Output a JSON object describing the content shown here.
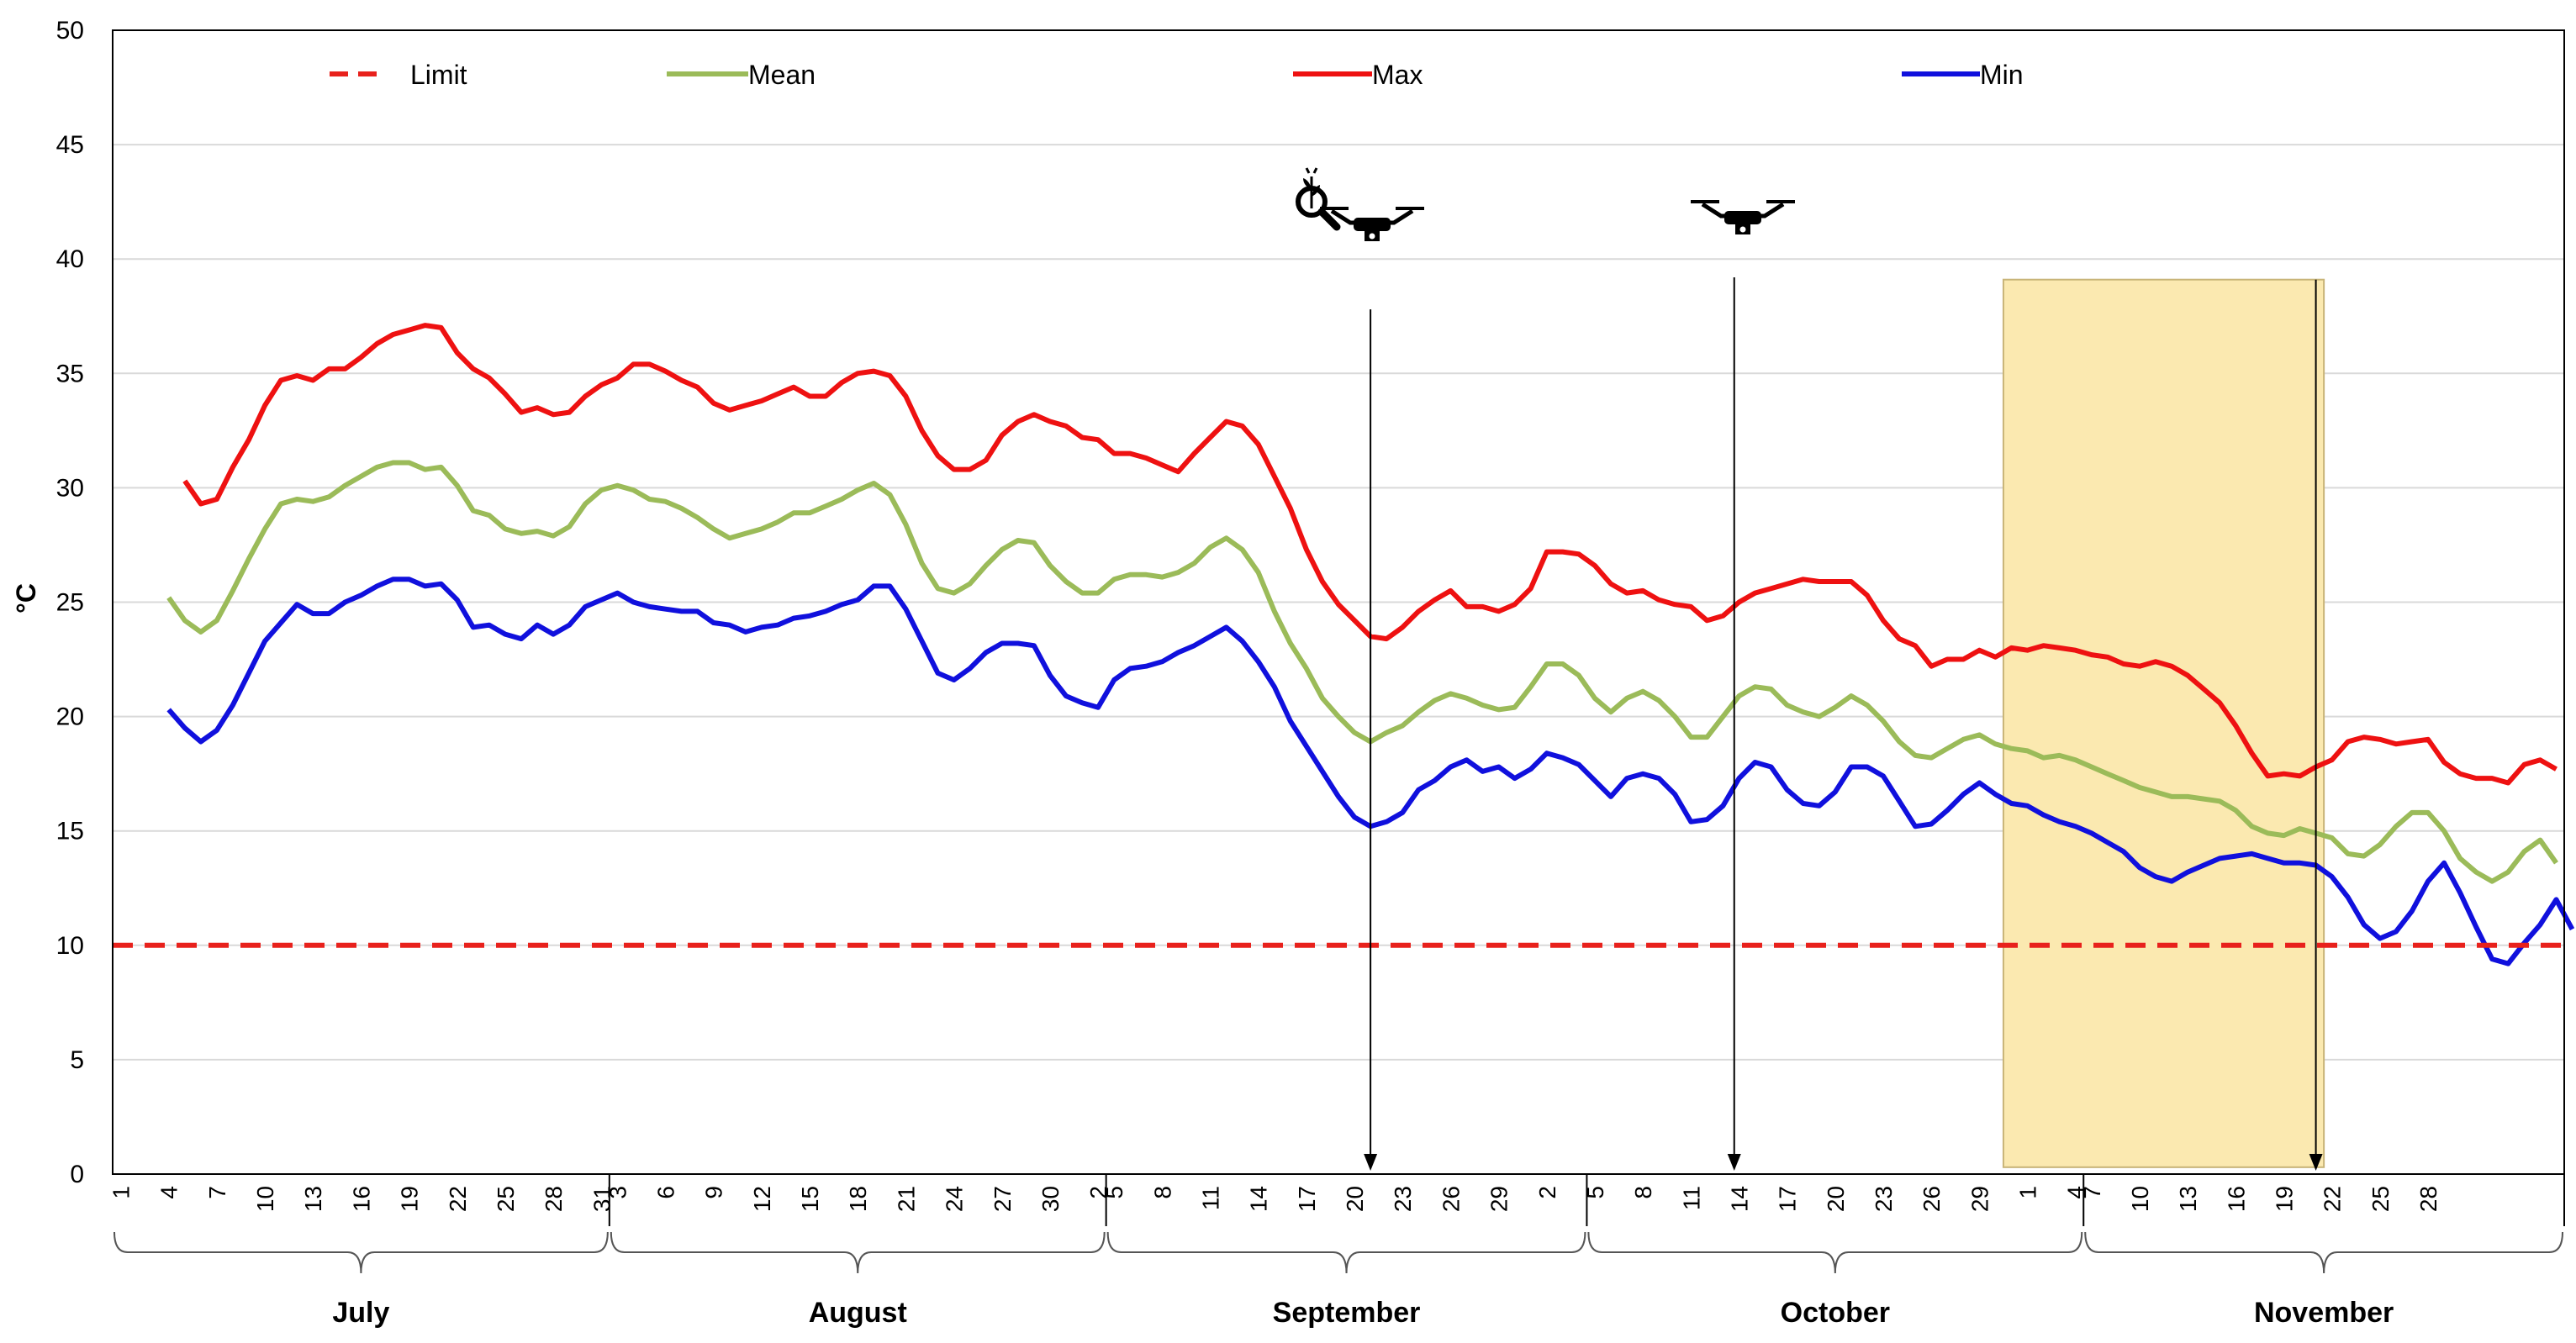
{
  "chart_data": {
    "type": "line",
    "ylabel": "°C",
    "ylim": [
      0,
      50
    ],
    "yticks": [
      "0",
      "5",
      "10",
      "15",
      "20",
      "25",
      "30",
      "35",
      "40",
      "45",
      "50"
    ],
    "grid": true,
    "legend_position": "top",
    "legend": [
      "Limit",
      "Mean",
      "Max",
      "Min"
    ],
    "colors": {
      "limit": "#e8211c",
      "mean": "#9bbb59",
      "max": "#ee1111",
      "min": "#1010dd",
      "highlight": "#fbe9b0",
      "highlight_border": "#c8b478"
    },
    "x_tick_labels": [
      "1",
      "4",
      "7",
      "10",
      "13",
      "16",
      "19",
      "22",
      "25",
      "28",
      "31",
      "3",
      "6",
      "9",
      "12",
      "15",
      "18",
      "21",
      "24",
      "27",
      "30",
      "2",
      "5",
      "8",
      "11",
      "14",
      "17",
      "20",
      "23",
      "26",
      "29",
      "2",
      "5",
      "8",
      "11",
      "14",
      "17",
      "20",
      "23",
      "26",
      "29",
      "1",
      "4",
      "7",
      "10",
      "13",
      "16",
      "19",
      "22",
      "25",
      "28"
    ],
    "months": [
      {
        "name": "July",
        "start_day": 1,
        "end_day": 31
      },
      {
        "name": "August",
        "start_day": 32,
        "end_day": 62
      },
      {
        "name": "September",
        "start_day": 63,
        "end_day": 92
      },
      {
        "name": "October",
        "start_day": 93,
        "end_day": 123
      },
      {
        "name": "November",
        "start_day": 124,
        "end_day": 153
      }
    ],
    "limit_value": 10,
    "series": [
      {
        "name": "Max",
        "start_day": 5,
        "values": [
          30.3,
          29.3,
          29.5,
          30.9,
          32.1,
          33.6,
          34.7,
          34.9,
          34.7,
          35.2,
          35.2,
          35.7,
          36.3,
          36.7,
          36.9,
          37.1,
          37.0,
          35.9,
          35.2,
          34.8,
          34.1,
          33.3,
          33.5,
          33.2,
          33.3,
          34.0,
          34.5,
          34.8,
          35.4,
          35.4,
          35.1,
          34.7,
          34.4,
          33.7,
          33.4,
          33.6,
          33.8,
          34.1,
          34.4,
          34.0,
          34.0,
          34.6,
          35.0,
          35.1,
          34.9,
          34.0,
          32.5,
          31.4,
          30.8,
          30.8,
          31.2,
          32.3,
          32.9,
          33.2,
          32.9,
          32.7,
          32.2,
          32.1,
          31.5,
          31.5,
          31.3,
          31.0,
          30.7,
          31.5,
          32.2,
          32.9,
          32.7,
          31.9,
          30.5,
          29.1,
          27.3,
          25.9,
          24.9,
          24.2,
          23.5,
          23.4,
          23.9,
          24.6,
          25.1,
          25.5,
          24.8,
          24.8,
          24.6,
          24.9,
          25.6,
          27.2,
          27.2,
          27.1,
          26.6,
          25.8,
          25.4,
          25.5,
          25.1,
          24.9,
          24.8,
          24.2,
          24.4,
          25.0,
          25.4,
          25.6,
          25.8,
          26.0,
          25.9,
          25.9,
          25.9,
          25.3,
          24.2,
          23.4,
          23.1,
          22.2,
          22.5,
          22.5,
          22.9,
          22.6,
          23.0,
          22.9,
          23.1,
          23.0,
          22.9,
          22.7,
          22.6,
          22.3,
          22.2,
          22.4,
          22.2,
          21.8,
          21.2,
          20.6,
          19.6,
          18.4,
          17.4,
          17.5,
          17.4,
          17.8,
          18.1,
          18.9,
          19.1,
          19.0,
          18.8,
          18.9,
          19.0,
          18.0,
          17.5,
          17.3,
          17.3,
          17.1,
          17.9,
          18.1,
          17.7
        ]
      },
      {
        "name": "Mean",
        "start_day": 4,
        "values": [
          25.2,
          24.2,
          23.7,
          24.2,
          25.5,
          26.9,
          28.2,
          29.3,
          29.5,
          29.4,
          29.6,
          30.1,
          30.5,
          30.9,
          31.1,
          31.1,
          30.8,
          30.9,
          30.1,
          29.0,
          28.8,
          28.2,
          28.0,
          28.1,
          27.9,
          28.3,
          29.3,
          29.9,
          30.1,
          29.9,
          29.5,
          29.4,
          29.1,
          28.7,
          28.2,
          27.8,
          28.0,
          28.2,
          28.5,
          28.9,
          28.9,
          29.2,
          29.5,
          29.9,
          30.2,
          29.7,
          28.4,
          26.7,
          25.6,
          25.4,
          25.8,
          26.6,
          27.3,
          27.7,
          27.6,
          26.6,
          25.9,
          25.4,
          25.4,
          26.0,
          26.2,
          26.2,
          26.1,
          26.3,
          26.7,
          27.4,
          27.8,
          27.3,
          26.3,
          24.6,
          23.2,
          22.1,
          20.8,
          20.0,
          19.3,
          18.9,
          19.3,
          19.6,
          20.2,
          20.7,
          21.0,
          20.8,
          20.5,
          20.3,
          20.4,
          21.3,
          22.3,
          22.3,
          21.8,
          20.8,
          20.2,
          20.8,
          21.1,
          20.7,
          20.0,
          19.1,
          19.1,
          20.0,
          20.9,
          21.3,
          21.2,
          20.5,
          20.2,
          20.0,
          20.4,
          20.9,
          20.5,
          19.8,
          18.9,
          18.3,
          18.2,
          18.6,
          19.0,
          19.2,
          18.8,
          18.6,
          18.5,
          18.2,
          18.3,
          18.1,
          17.8,
          17.5,
          17.2,
          16.9,
          16.7,
          16.5,
          16.5,
          16.4,
          16.3,
          15.9,
          15.2,
          14.9,
          14.8,
          15.1,
          14.9,
          14.7,
          14.0,
          13.9,
          14.4,
          15.2,
          15.8,
          15.8,
          15.0,
          13.8,
          13.2,
          12.8,
          13.2,
          14.1,
          14.6,
          13.6
        ]
      },
      {
        "name": "Min",
        "start_day": 4,
        "values": [
          20.3,
          19.5,
          18.9,
          19.4,
          20.5,
          21.9,
          23.3,
          24.1,
          24.9,
          24.5,
          24.5,
          25.0,
          25.3,
          25.7,
          26.0,
          26.0,
          25.7,
          25.8,
          25.1,
          23.9,
          24.0,
          23.6,
          23.4,
          24.0,
          23.6,
          24.0,
          24.8,
          25.1,
          25.4,
          25.0,
          24.8,
          24.7,
          24.6,
          24.6,
          24.1,
          24.0,
          23.7,
          23.9,
          24.0,
          24.3,
          24.4,
          24.6,
          24.9,
          25.1,
          25.7,
          25.7,
          24.7,
          23.3,
          21.9,
          21.6,
          22.1,
          22.8,
          23.2,
          23.2,
          23.1,
          21.8,
          20.9,
          20.6,
          20.4,
          21.6,
          22.1,
          22.2,
          22.4,
          22.8,
          23.1,
          23.5,
          23.9,
          23.3,
          22.4,
          21.3,
          19.8,
          18.7,
          17.6,
          16.5,
          15.6,
          15.2,
          15.4,
          15.8,
          16.8,
          17.2,
          17.8,
          18.1,
          17.6,
          17.8,
          17.3,
          17.7,
          18.4,
          18.2,
          17.9,
          17.2,
          16.5,
          17.3,
          17.5,
          17.3,
          16.6,
          15.4,
          15.5,
          16.1,
          17.3,
          18.0,
          17.8,
          16.8,
          16.2,
          16.1,
          16.7,
          17.8,
          17.8,
          17.4,
          16.3,
          15.2,
          15.3,
          15.9,
          16.6,
          17.1,
          16.6,
          16.2,
          16.1,
          15.7,
          15.4,
          15.2,
          14.9,
          14.5,
          14.1,
          13.4,
          13.0,
          12.8,
          13.2,
          13.5,
          13.8,
          13.9,
          14.0,
          13.8,
          13.6,
          13.6,
          13.5,
          13.0,
          12.1,
          10.9,
          10.3,
          10.6,
          11.5,
          12.8,
          13.6,
          12.3,
          10.8,
          9.4,
          9.2,
          10.1,
          10.9,
          12.0,
          10.7
        ]
      }
    ],
    "annotations": [
      {
        "type": "arrow",
        "label": "drone-survey-1",
        "day": 17
      },
      {
        "type": "arrow",
        "label": "drone-survey-2",
        "day": 10
      },
      {
        "type": "shaded-window",
        "label": "inspection-period",
        "start_day": 119,
        "end_day": 138
      }
    ]
  }
}
